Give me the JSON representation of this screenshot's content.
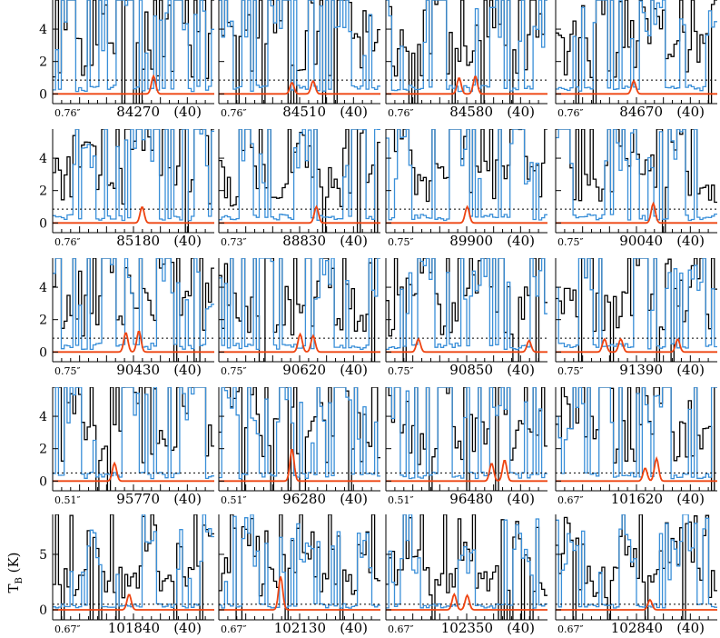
{
  "figure": {
    "ylabel": "T",
    "ylabel_sub": "B",
    "ylabel_unit": " (K)"
  },
  "chart_data": {
    "type": "line",
    "ylabel": "TB (K)",
    "colors": {
      "observed": "#000000",
      "model_all": "#3a8fd8",
      "model_species": "#ee4411",
      "threshold": "#000000"
    },
    "panels": [
      {
        "beam": "0.76″",
        "freq": "84270",
        "dv": "(40)",
        "yticks": [
          0,
          2,
          4
        ],
        "ylim": [
          -0.6,
          5.8
        ],
        "threshold": 0.85,
        "species_peaks": [
          [
            0.62,
            1.1
          ]
        ]
      },
      {
        "beam": "0.76″",
        "freq": "84510",
        "dv": "(40)",
        "yticks": [
          0,
          2,
          4
        ],
        "ylim": [
          -0.6,
          5.8
        ],
        "threshold": 0.85,
        "species_peaks": [
          [
            0.45,
            0.7
          ],
          [
            0.58,
            0.8
          ]
        ]
      },
      {
        "beam": "0.76″",
        "freq": "84580",
        "dv": "(40)",
        "yticks": [
          0,
          2,
          4
        ],
        "ylim": [
          -0.6,
          5.8
        ],
        "threshold": 0.85,
        "species_peaks": [
          [
            0.45,
            1.0
          ],
          [
            0.55,
            1.1
          ]
        ]
      },
      {
        "beam": "0.76″",
        "freq": "84670",
        "dv": "(40)",
        "yticks": [
          0,
          2,
          4
        ],
        "ylim": [
          -0.6,
          5.8
        ],
        "threshold": 0.85,
        "species_peaks": [
          [
            0.48,
            0.8
          ]
        ]
      },
      {
        "beam": "0.76″",
        "freq": "85180",
        "dv": "(40)",
        "yticks": [
          0,
          2,
          4
        ],
        "ylim": [
          -0.6,
          5.8
        ],
        "threshold": 0.85,
        "species_peaks": [
          [
            0.55,
            1.0
          ]
        ]
      },
      {
        "beam": "0.73″",
        "freq": "88830",
        "dv": "(40)",
        "yticks": [
          0,
          2,
          4
        ],
        "ylim": [
          -0.6,
          5.8
        ],
        "threshold": 0.85,
        "species_peaks": [
          [
            0.6,
            1.0
          ]
        ]
      },
      {
        "beam": "0.75″",
        "freq": "89900",
        "dv": "(40)",
        "yticks": [
          0,
          2,
          4
        ],
        "ylim": [
          -0.6,
          5.8
        ],
        "threshold": 0.85,
        "species_peaks": [
          [
            0.5,
            1.0
          ]
        ]
      },
      {
        "beam": "0.75″",
        "freq": "90040",
        "dv": "(40)",
        "yticks": [
          0,
          2,
          4
        ],
        "ylim": [
          -0.6,
          5.8
        ],
        "threshold": 0.85,
        "species_peaks": [
          [
            0.6,
            1.2
          ]
        ]
      },
      {
        "beam": "0.75″",
        "freq": "90430",
        "dv": "(40)",
        "yticks": [
          0,
          2,
          4
        ],
        "ylim": [
          -0.6,
          5.8
        ],
        "threshold": 0.85,
        "species_peaks": [
          [
            0.45,
            1.2
          ],
          [
            0.53,
            1.3
          ]
        ]
      },
      {
        "beam": "0.75″",
        "freq": "90620",
        "dv": "(40)",
        "yticks": [
          0,
          2,
          4
        ],
        "ylim": [
          -0.6,
          5.8
        ],
        "threshold": 0.85,
        "species_peaks": [
          [
            0.5,
            1.1
          ],
          [
            0.58,
            1.0
          ]
        ]
      },
      {
        "beam": "0.75″",
        "freq": "90850",
        "dv": "(40)",
        "yticks": [
          0,
          2,
          4
        ],
        "ylim": [
          -0.6,
          5.8
        ],
        "threshold": 0.85,
        "species_peaks": [
          [
            0.2,
            0.8
          ],
          [
            0.88,
            0.7
          ]
        ]
      },
      {
        "beam": "0.75″",
        "freq": "91390",
        "dv": "(40)",
        "yticks": [
          0,
          2,
          4
        ],
        "ylim": [
          -0.6,
          5.8
        ],
        "threshold": 0.85,
        "species_peaks": [
          [
            0.3,
            0.8
          ],
          [
            0.4,
            0.8
          ],
          [
            0.75,
            0.8
          ]
        ]
      },
      {
        "beam": "0.51″",
        "freq": "95770",
        "dv": "(40)",
        "yticks": [
          0,
          2,
          4
        ],
        "ylim": [
          -0.6,
          5.8
        ],
        "threshold": 0.5,
        "species_peaks": [
          [
            0.38,
            1.1
          ]
        ]
      },
      {
        "beam": "0.51″",
        "freq": "96280",
        "dv": "(40)",
        "yticks": [
          0,
          2,
          4
        ],
        "ylim": [
          -0.6,
          5.8
        ],
        "threshold": 0.5,
        "species_peaks": [
          [
            0.45,
            2.0
          ]
        ]
      },
      {
        "beam": "0.51″",
        "freq": "96480",
        "dv": "(40)",
        "yticks": [
          0,
          2,
          4
        ],
        "ylim": [
          -0.6,
          5.8
        ],
        "threshold": 0.5,
        "species_peaks": [
          [
            0.65,
            1.1
          ],
          [
            0.73,
            1.3
          ]
        ]
      },
      {
        "beam": "0.67″",
        "freq": "101620",
        "dv": "(40)",
        "yticks": [
          0,
          2,
          4
        ],
        "ylim": [
          -0.6,
          5.8
        ],
        "threshold": 0.5,
        "species_peaks": [
          [
            0.55,
            0.8
          ],
          [
            0.62,
            1.4
          ]
        ]
      },
      {
        "beam": "0.67″",
        "freq": "101840",
        "dv": "(40)",
        "yticks": [
          0,
          5
        ],
        "ylim": [
          -0.9,
          8.6
        ],
        "threshold": 0.5,
        "species_peaks": [
          [
            0.47,
            1.4
          ]
        ]
      },
      {
        "beam": "0.67″",
        "freq": "102130",
        "dv": "(40)",
        "yticks": [
          0,
          5
        ],
        "ylim": [
          -0.9,
          8.6
        ],
        "threshold": 0.5,
        "species_peaks": [
          [
            0.38,
            3.0
          ]
        ]
      },
      {
        "beam": "0.67″",
        "freq": "102350",
        "dv": "(40)",
        "yticks": [
          0,
          5
        ],
        "ylim": [
          -0.9,
          8.6
        ],
        "threshold": 0.5,
        "species_peaks": [
          [
            0.42,
            1.4
          ],
          [
            0.5,
            1.3
          ]
        ]
      },
      {
        "beam": "0.67″",
        "freq": "102840",
        "dv": "(40)",
        "yticks": [
          0,
          5
        ],
        "ylim": [
          -0.9,
          8.6
        ],
        "threshold": 0.5,
        "species_peaks": [
          [
            0.58,
            0.9
          ]
        ]
      }
    ]
  }
}
